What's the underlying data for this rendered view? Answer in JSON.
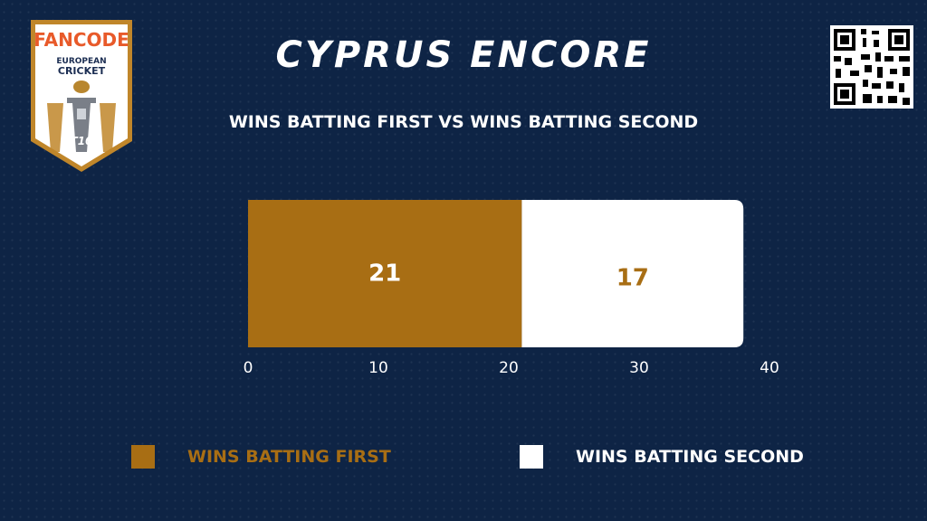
{
  "header": {
    "title": "CYPRUS ENCORE",
    "subtitle": "WINS BATTING FIRST VS WINS BATTING SECOND"
  },
  "logo": {
    "brand": "FANCODE",
    "line1": "EUROPEAN",
    "line2": "CRICKET",
    "badge": "T10"
  },
  "colors": {
    "background": "#0e2445",
    "first": "#a86e14",
    "second": "#ffffff"
  },
  "chart_data": {
    "type": "bar",
    "orientation": "horizontal-stacked",
    "categories": [
      ""
    ],
    "series": [
      {
        "name": "WINS BATTING FIRST",
        "values": [
          21
        ],
        "color": "#a86e14"
      },
      {
        "name": "WINS BATTING SECOND",
        "values": [
          17
        ],
        "color": "#ffffff"
      }
    ],
    "data_labels": [
      "21",
      "17"
    ],
    "xlim": [
      0,
      40
    ],
    "xticks": [
      0,
      10,
      20,
      30,
      40
    ],
    "xtick_labels": [
      "0",
      "10",
      "20",
      "30",
      "40"
    ],
    "grid": false,
    "legend": "bottom"
  },
  "legend": {
    "first_label": "WINS BATTING FIRST",
    "second_label": "WINS BATTING SECOND"
  }
}
